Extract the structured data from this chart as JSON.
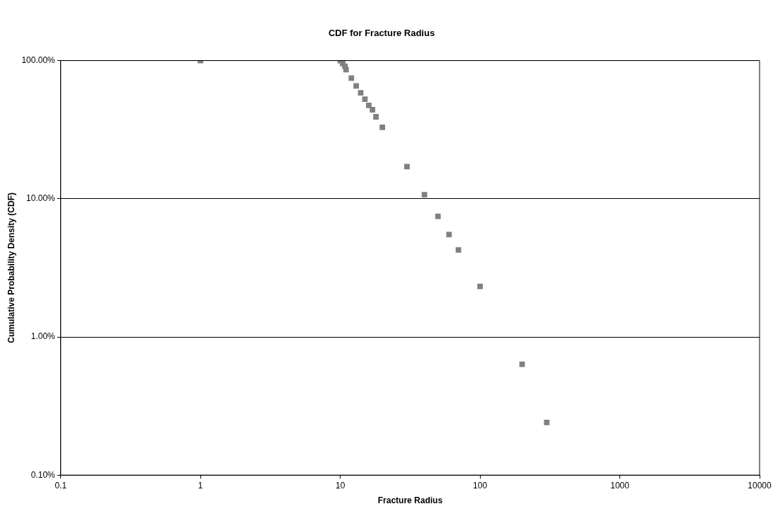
{
  "chart_data": {
    "type": "scatter",
    "title": "CDF for Fracture Radius",
    "xlabel": "Fracture Radius",
    "ylabel": "Cumulative Probability Density (CDF)",
    "x": [
      1,
      10,
      10.4,
      10.8,
      11,
      12,
      13,
      14,
      15,
      16,
      17,
      18,
      20,
      30,
      40,
      50,
      60,
      70,
      100,
      200,
      300
    ],
    "series": [
      {
        "color": "#808080",
        "values": [
          100,
          100,
          95.4,
          91,
          86,
          74.6,
          65.6,
          58.4,
          52.6,
          47.4,
          44.1,
          39.2,
          32.9,
          17.1,
          10.7,
          7.46,
          5.51,
          4.26,
          2.32,
          0.634,
          0.24
        ]
      }
    ],
    "log": "xy",
    "xlim": [
      0.1,
      10000
    ],
    "ylim": [
      0.1,
      100
    ],
    "xticks": [
      0.1,
      1,
      10,
      100,
      1000,
      10000
    ],
    "yticks": [
      {
        "value": 0.1,
        "label": "0.10%"
      },
      {
        "value": 1,
        "label": "1.00%"
      },
      {
        "value": 10,
        "label": "10.00%"
      },
      {
        "value": 100,
        "label": "100.00%"
      }
    ],
    "grid": "y",
    "legend": false,
    "marker": "square"
  }
}
